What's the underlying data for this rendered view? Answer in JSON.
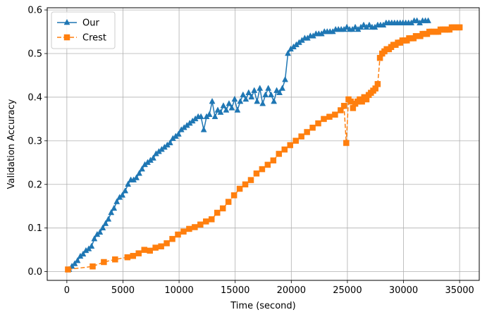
{
  "chart_data": {
    "type": "line",
    "title": "",
    "xlabel": "Time (second)",
    "ylabel": "Validation Accuracy",
    "xlim": [
      -1750,
      36750
    ],
    "ylim": [
      -0.02,
      0.605
    ],
    "xticks": [
      0,
      5000,
      10000,
      15000,
      20000,
      25000,
      30000,
      35000
    ],
    "yticks": [
      0.0,
      0.1,
      0.2,
      0.3,
      0.4,
      0.5,
      0.6
    ],
    "xtick_labels": [
      "0",
      "5000",
      "10000",
      "15000",
      "20000",
      "25000",
      "30000",
      "35000"
    ],
    "ytick_labels": [
      "0.0",
      "0.1",
      "0.2",
      "0.3",
      "0.4",
      "0.5",
      "0.6"
    ],
    "grid": true,
    "legend_position": "top-left",
    "series": [
      {
        "name": "Our",
        "color": "#1f77b4",
        "marker": "triangle",
        "linestyle": "solid",
        "x": [
          200,
          450,
          700,
          950,
          1200,
          1450,
          1700,
          1950,
          2200,
          2450,
          2700,
          2950,
          3200,
          3450,
          3700,
          3950,
          4200,
          4450,
          4700,
          4950,
          5200,
          5450,
          5700,
          5950,
          6200,
          6450,
          6700,
          6950,
          7200,
          7450,
          7700,
          7950,
          8200,
          8450,
          8700,
          8950,
          9200,
          9450,
          9700,
          9950,
          10200,
          10450,
          10700,
          10950,
          11200,
          11450,
          11700,
          11950,
          12200,
          12450,
          12700,
          12950,
          13200,
          13450,
          13700,
          13950,
          14200,
          14450,
          14700,
          14950,
          15200,
          15450,
          15700,
          15950,
          16200,
          16450,
          16700,
          16950,
          17200,
          17450,
          17700,
          17950,
          18200,
          18450,
          18700,
          18950,
          19200,
          19450,
          19700,
          19950,
          20200,
          20450,
          20700,
          20950,
          21200,
          21450,
          21700,
          21950,
          22200,
          22450,
          22700,
          22950,
          23200,
          23450,
          23700,
          23950,
          24200,
          24450,
          24700,
          24950,
          25200,
          25450,
          25700,
          25950,
          26200,
          26450,
          26700,
          26950,
          27200,
          27450,
          27700,
          27950,
          28200,
          28450,
          28700,
          28950,
          29200,
          29450,
          29700,
          29950,
          30200,
          30450,
          30700,
          30950,
          31200,
          31450,
          31700,
          31950,
          32200
        ],
        "y": [
          0.005,
          0.012,
          0.018,
          0.025,
          0.035,
          0.04,
          0.048,
          0.052,
          0.058,
          0.075,
          0.085,
          0.09,
          0.1,
          0.11,
          0.12,
          0.135,
          0.145,
          0.16,
          0.17,
          0.175,
          0.185,
          0.2,
          0.21,
          0.21,
          0.215,
          0.225,
          0.235,
          0.245,
          0.25,
          0.255,
          0.26,
          0.27,
          0.275,
          0.28,
          0.285,
          0.29,
          0.295,
          0.305,
          0.31,
          0.315,
          0.325,
          0.33,
          0.335,
          0.34,
          0.345,
          0.35,
          0.355,
          0.355,
          0.325,
          0.355,
          0.36,
          0.39,
          0.355,
          0.37,
          0.365,
          0.38,
          0.37,
          0.385,
          0.375,
          0.395,
          0.37,
          0.39,
          0.405,
          0.395,
          0.41,
          0.4,
          0.415,
          0.39,
          0.42,
          0.385,
          0.405,
          0.42,
          0.405,
          0.39,
          0.415,
          0.41,
          0.42,
          0.44,
          0.5,
          0.51,
          0.515,
          0.52,
          0.525,
          0.53,
          0.535,
          0.535,
          0.54,
          0.54,
          0.545,
          0.545,
          0.545,
          0.55,
          0.55,
          0.55,
          0.55,
          0.555,
          0.555,
          0.555,
          0.555,
          0.56,
          0.555,
          0.555,
          0.56,
          0.555,
          0.56,
          0.565,
          0.56,
          0.565,
          0.56,
          0.56,
          0.565,
          0.565,
          0.565,
          0.57,
          0.57,
          0.57,
          0.57,
          0.57,
          0.57,
          0.57,
          0.57,
          0.57,
          0.57,
          0.575,
          0.575,
          0.57,
          0.575,
          0.575,
          0.575
        ]
      },
      {
        "name": "Crest",
        "color": "#ff7f0e",
        "marker": "square",
        "linestyle": "dashed",
        "x": [
          100,
          2300,
          3300,
          4300,
          5400,
          5900,
          6400,
          6900,
          7400,
          7900,
          8400,
          8900,
          9400,
          9900,
          10400,
          10900,
          11400,
          11900,
          12400,
          12900,
          13400,
          13900,
          14400,
          14900,
          15400,
          15900,
          16400,
          16900,
          17400,
          17900,
          18400,
          18900,
          19400,
          19900,
          20400,
          20900,
          21400,
          21900,
          22400,
          22900,
          23400,
          23900,
          24400,
          24700,
          24900,
          25100,
          25300,
          25500,
          25700,
          25900,
          26100,
          26300,
          26500,
          26700,
          26900,
          27100,
          27300,
          27500,
          27700,
          27900,
          28100,
          28300,
          28500,
          28700,
          28900,
          29100,
          29300,
          29500,
          29700,
          29900,
          30100,
          30300,
          30500,
          30700,
          30900,
          31100,
          31300,
          31500,
          31700,
          31900,
          32100,
          32300,
          32500,
          32700,
          32900,
          33100,
          33300,
          33500,
          33700,
          33900,
          34100,
          34300,
          34500,
          34700,
          34900,
          35000
        ],
        "y": [
          0.005,
          0.012,
          0.022,
          0.028,
          0.033,
          0.036,
          0.042,
          0.05,
          0.048,
          0.055,
          0.058,
          0.065,
          0.075,
          0.085,
          0.092,
          0.098,
          0.102,
          0.108,
          0.115,
          0.12,
          0.135,
          0.145,
          0.16,
          0.175,
          0.19,
          0.2,
          0.21,
          0.225,
          0.235,
          0.245,
          0.255,
          0.27,
          0.28,
          0.29,
          0.3,
          0.31,
          0.32,
          0.33,
          0.34,
          0.35,
          0.355,
          0.36,
          0.37,
          0.38,
          0.295,
          0.395,
          0.39,
          0.375,
          0.385,
          0.39,
          0.395,
          0.39,
          0.4,
          0.395,
          0.405,
          0.41,
          0.415,
          0.42,
          0.43,
          0.49,
          0.5,
          0.505,
          0.51,
          0.51,
          0.515,
          0.52,
          0.52,
          0.525,
          0.525,
          0.53,
          0.53,
          0.53,
          0.535,
          0.535,
          0.535,
          0.54,
          0.54,
          0.54,
          0.545,
          0.545,
          0.545,
          0.55,
          0.55,
          0.55,
          0.55,
          0.55,
          0.555,
          0.555,
          0.555,
          0.555,
          0.555,
          0.56,
          0.56,
          0.56,
          0.56,
          0.56
        ]
      }
    ]
  }
}
